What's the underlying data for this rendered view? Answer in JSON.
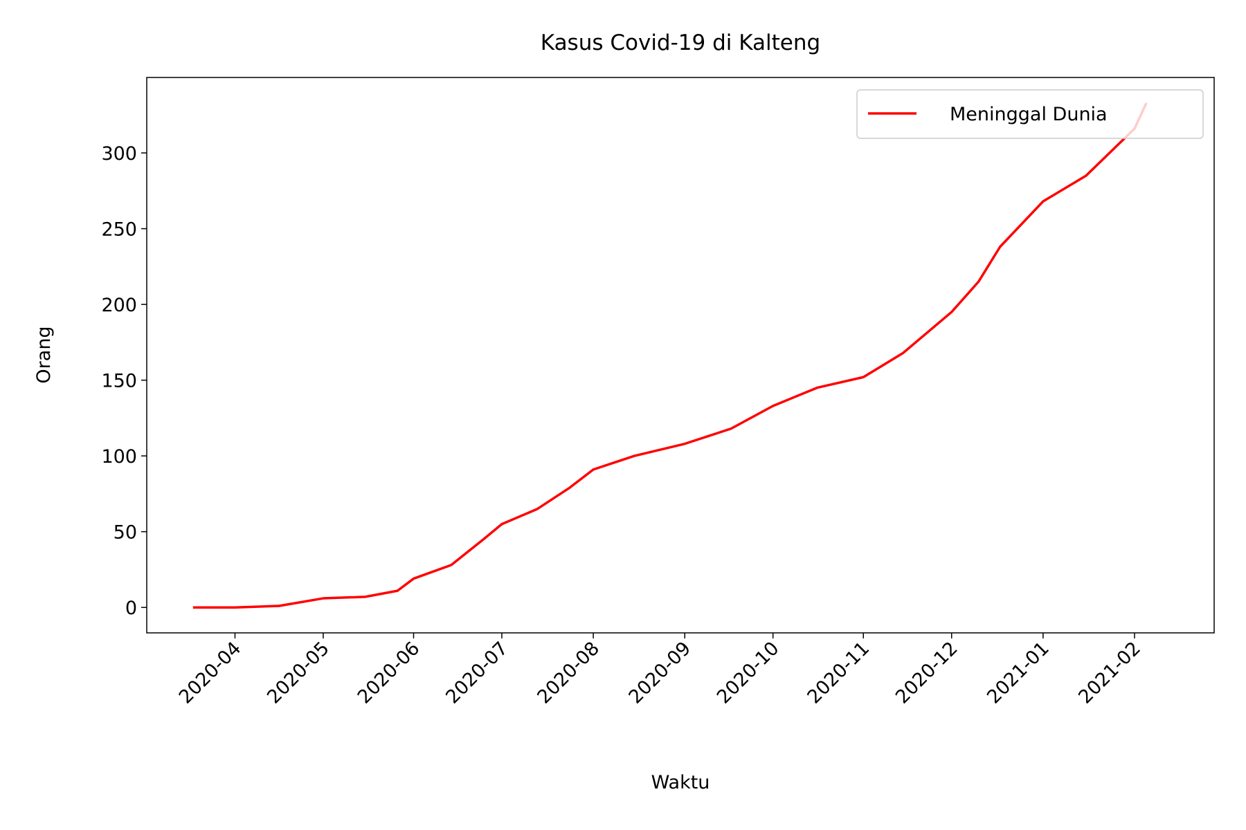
{
  "chart_data": {
    "type": "line",
    "title": "Kasus Covid-19 di Kalteng",
    "x_label": "Waktu",
    "y_label": "Orang",
    "x": [
      2020.21,
      2020.249,
      2020.29,
      2020.331,
      2020.37,
      2020.4,
      2020.415,
      2020.45,
      2020.48,
      2020.497,
      2020.53,
      2020.56,
      2020.582,
      2020.62,
      2020.667,
      2020.71,
      2020.749,
      2020.79,
      2020.833,
      2020.87,
      2020.915,
      2020.94,
      2020.96,
      2021.0,
      2021.04,
      2021.085,
      2021.096
    ],
    "series": [
      {
        "name": "Meninggal Dunia",
        "color": "#ff0000",
        "values": [
          0,
          0,
          1,
          6,
          7,
          11,
          19,
          28,
          45,
          55,
          65,
          79,
          91,
          100,
          108,
          118,
          133,
          145,
          152,
          168,
          195,
          215,
          238,
          268,
          285,
          316,
          333
        ]
      }
    ],
    "xlim": [
      2020.167,
      2021.159
    ],
    "xticks": [
      {
        "value": 2020.249,
        "label": "2020-04"
      },
      {
        "value": 2020.331,
        "label": "2020-05"
      },
      {
        "value": 2020.415,
        "label": "2020-06"
      },
      {
        "value": 2020.497,
        "label": "2020-07"
      },
      {
        "value": 2020.582,
        "label": "2020-08"
      },
      {
        "value": 2020.667,
        "label": "2020-09"
      },
      {
        "value": 2020.749,
        "label": "2020-10"
      },
      {
        "value": 2020.833,
        "label": "2020-11"
      },
      {
        "value": 2020.915,
        "label": "2020-12"
      },
      {
        "value": 2021.0,
        "label": "2021-01"
      },
      {
        "value": 2021.085,
        "label": "2021-02"
      }
    ],
    "ylim": [
      -16.8,
      349.8
    ],
    "yticks": [
      0,
      50,
      100,
      150,
      200,
      250,
      300
    ],
    "grid": false,
    "legend": "upper right"
  }
}
